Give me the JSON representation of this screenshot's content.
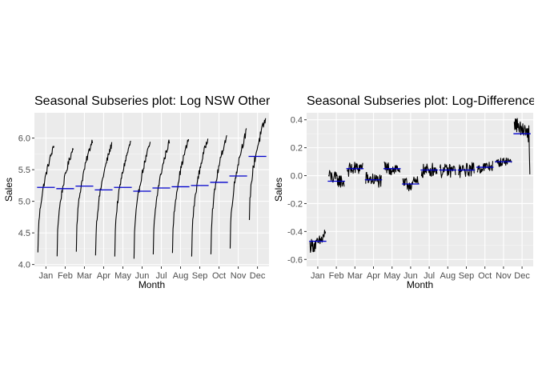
{
  "chart_data": [
    {
      "type": "line",
      "title": "Seasonal Subseries plot: Log NSW Other",
      "xlabel": "Month",
      "ylabel": "Sales",
      "ylim": [
        3.97,
        6.4
      ],
      "yticks": [
        4.0,
        4.5,
        5.0,
        5.5,
        6.0
      ],
      "ytick_labels": [
        "4.0",
        "4.5",
        "5.0",
        "5.5",
        "6.0"
      ],
      "categories": [
        "Jan",
        "Feb",
        "Mar",
        "Apr",
        "May",
        "Jun",
        "Jul",
        "Aug",
        "Sep",
        "Oct",
        "Nov",
        "Dec"
      ],
      "series_name": "sales",
      "mean_name": "monthly mean",
      "series_color": "#000000",
      "mean_color": "#0000cd",
      "years": 32,
      "months": [
        {
          "start": 4.17,
          "end": 5.88,
          "mean": 5.22,
          "noise": 0.05,
          "shape": 0.45
        },
        {
          "start": 4.17,
          "end": 5.85,
          "mean": 5.2,
          "noise": 0.05,
          "shape": 0.45
        },
        {
          "start": 4.25,
          "end": 5.97,
          "mean": 5.24,
          "noise": 0.05,
          "shape": 0.45
        },
        {
          "start": 4.14,
          "end": 5.9,
          "mean": 5.18,
          "noise": 0.05,
          "shape": 0.45
        },
        {
          "start": 4.17,
          "end": 5.95,
          "mean": 5.22,
          "noise": 0.05,
          "shape": 0.45
        },
        {
          "start": 4.1,
          "end": 5.92,
          "mean": 5.16,
          "noise": 0.05,
          "shape": 0.45
        },
        {
          "start": 4.13,
          "end": 5.95,
          "mean": 5.21,
          "noise": 0.05,
          "shape": 0.45
        },
        {
          "start": 4.15,
          "end": 5.98,
          "mean": 5.23,
          "noise": 0.05,
          "shape": 0.45
        },
        {
          "start": 4.13,
          "end": 6.0,
          "mean": 5.25,
          "noise": 0.05,
          "shape": 0.45
        },
        {
          "start": 4.2,
          "end": 6.05,
          "mean": 5.3,
          "noise": 0.05,
          "shape": 0.45
        },
        {
          "start": 4.25,
          "end": 6.1,
          "mean": 5.4,
          "noise": 0.06,
          "shape": 0.45
        },
        {
          "start": 4.65,
          "end": 6.3,
          "mean": 5.71,
          "noise": 0.07,
          "shape": 0.45
        }
      ]
    },
    {
      "type": "line",
      "title": "Seasonal Subseries plot: Log-Differenced",
      "xlabel": "Month",
      "ylabel": "Sales",
      "ylim": [
        -0.65,
        0.45
      ],
      "yticks": [
        -0.6,
        -0.4,
        -0.2,
        0.0,
        0.2,
        0.4
      ],
      "ytick_labels": [
        "-0.6",
        "-0.4",
        "-0.2",
        "0.0",
        "0.2",
        "0.4"
      ],
      "categories": [
        "Jan",
        "Feb",
        "Mar",
        "Apr",
        "May",
        "Jun",
        "Jul",
        "Aug",
        "Sep",
        "Oct",
        "Nov",
        "Dec"
      ],
      "series_name": "sales",
      "mean_name": "monthly mean",
      "series_color": "#000000",
      "mean_color": "#0000cd",
      "years": 32,
      "months": [
        {
          "start": -0.5,
          "end": -0.4,
          "mean": -0.47,
          "noise": 0.05
        },
        {
          "start": 0.0,
          "end": -0.05,
          "mean": -0.04,
          "noise": 0.05
        },
        {
          "start": 0.04,
          "end": 0.06,
          "mean": 0.05,
          "noise": 0.05
        },
        {
          "start": -0.02,
          "end": -0.04,
          "mean": -0.03,
          "noise": 0.05
        },
        {
          "start": 0.05,
          "end": 0.05,
          "mean": 0.05,
          "noise": 0.05
        },
        {
          "start": -0.07,
          "end": -0.05,
          "mean": -0.06,
          "noise": 0.05
        },
        {
          "start": 0.03,
          "end": 0.05,
          "mean": 0.04,
          "noise": 0.05
        },
        {
          "start": 0.03,
          "end": 0.04,
          "mean": 0.04,
          "noise": 0.05
        },
        {
          "start": 0.03,
          "end": 0.05,
          "mean": 0.04,
          "noise": 0.05
        },
        {
          "start": 0.05,
          "end": 0.07,
          "mean": 0.06,
          "noise": 0.04
        },
        {
          "start": 0.09,
          "end": 0.11,
          "mean": 0.1,
          "noise": 0.03
        },
        {
          "start": 0.38,
          "end": -0.02,
          "mean": 0.3,
          "noise": 0.05
        }
      ]
    }
  ]
}
